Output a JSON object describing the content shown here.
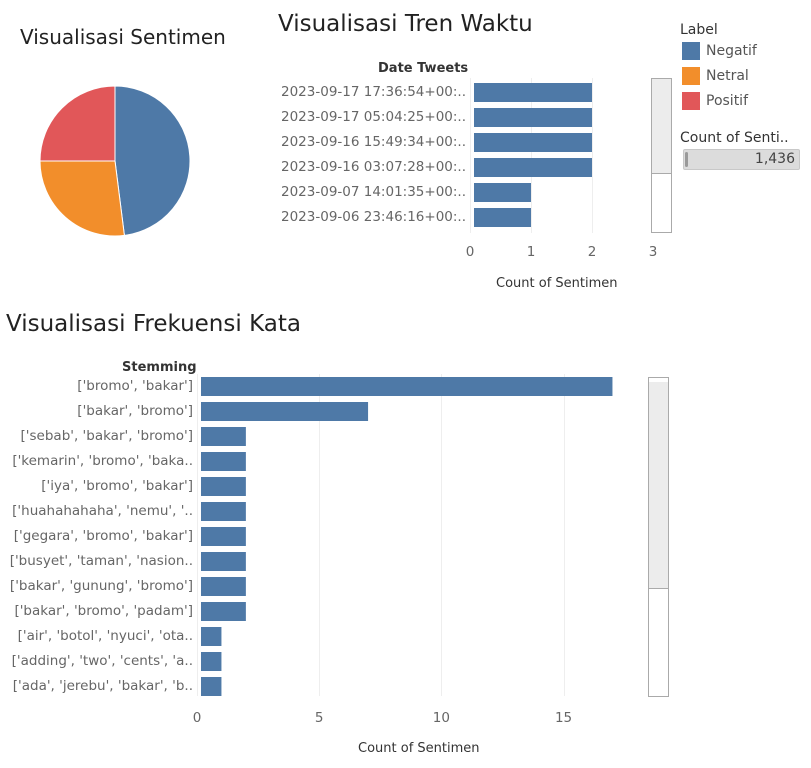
{
  "colors": {
    "bar": "#4e79a7",
    "negatif": "#4e79a7",
    "netral": "#f28e2b",
    "positif": "#e15759",
    "grid": "#eeeeee"
  },
  "sentiment": {
    "title": "Visualisasi Sentimen"
  },
  "trend": {
    "title": "Visualisasi Tren Waktu",
    "field_label": "Date Tweets",
    "axis_title": "Count of Sentimen"
  },
  "frequency": {
    "title": "Visualisasi Frekuensi Kata",
    "field_label": "Stemming",
    "axis_title": "Count of Sentimen"
  },
  "legend": {
    "title": "Label",
    "items": [
      {
        "label": "Negatif",
        "color": "#4e79a7"
      },
      {
        "label": "Netral",
        "color": "#f28e2b"
      },
      {
        "label": "Positif",
        "color": "#e15759"
      }
    ]
  },
  "size_legend": {
    "title": "Count of Senti..",
    "value": "1,436"
  },
  "chart_data": [
    {
      "type": "pie",
      "title": "Visualisasi Sentimen",
      "categories": [
        "Negatif",
        "Netral",
        "Positif"
      ],
      "values": [
        48,
        27,
        25
      ]
    },
    {
      "type": "bar",
      "orientation": "horizontal",
      "title": "Visualisasi Tren Waktu",
      "ylabel": "Date Tweets",
      "xlabel": "Count of Sentimen",
      "categories": [
        "2023-09-17 17:36:54+00:..",
        "2023-09-17 05:04:25+00:..",
        "2023-09-16 15:49:34+00:..",
        "2023-09-16 03:07:28+00:..",
        "2023-09-07 14:01:35+00:..",
        "2023-09-06 23:46:16+00:.."
      ],
      "values": [
        2,
        2,
        2,
        2,
        1,
        1
      ],
      "xlim": [
        0,
        3
      ],
      "xticks": [
        "0",
        "1",
        "2",
        "3"
      ]
    },
    {
      "type": "bar",
      "orientation": "horizontal",
      "title": "Visualisasi Frekuensi Kata",
      "ylabel": "Stemming",
      "xlabel": "Count of Sentimen",
      "categories": [
        "['bromo', 'bakar']",
        "['bakar', 'bromo']",
        "['sebab', 'bakar', 'bromo']",
        "['kemarin', 'bromo', 'baka..",
        "['iya', 'bromo', 'bakar']",
        "['huahahahaha', 'nemu', '..",
        "['gegara', 'bromo', 'bakar']",
        "['busyet', 'taman', 'nasion..",
        "['bakar', 'gunung', 'bromo']",
        "['bakar', 'bromo', 'padam']",
        "['air', 'botol', 'nyuci', 'ota..",
        "['adding', 'two', 'cents', 'a..",
        "['ada', 'jerebu', 'bakar', 'b.."
      ],
      "values": [
        17,
        7,
        2,
        2,
        2,
        2,
        2,
        2,
        2,
        2,
        1,
        1,
        1
      ],
      "xlim": [
        0,
        18.7
      ],
      "xticks": [
        "0",
        "5",
        "10",
        "15"
      ]
    }
  ]
}
